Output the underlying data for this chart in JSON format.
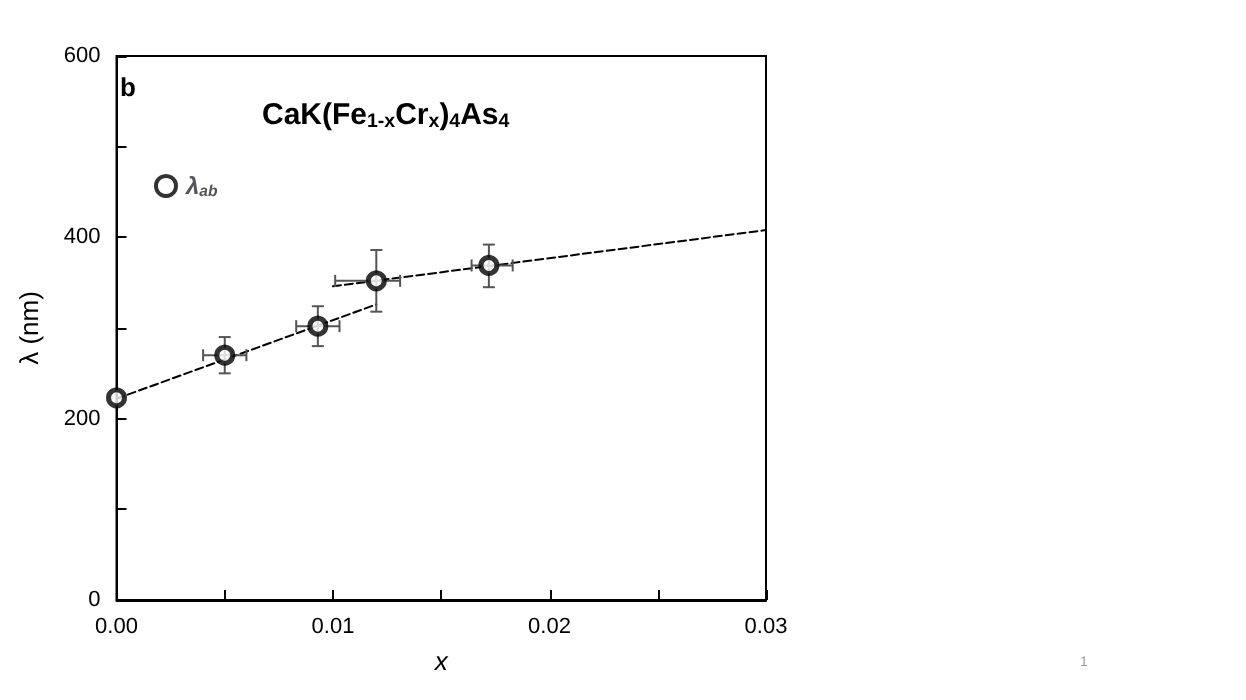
{
  "chart_data": {
    "type": "scatter",
    "title": "CaK(Fe$_{1-x}$Cr$_{x}$)$_{4}$As$_{4}$",
    "xlabel": "x",
    "ylabel": "λ (nm)",
    "annotations": [
      "b",
      "1"
    ],
    "x": [
      0,
      0.005,
      0.0093,
      0.012,
      0.0172
    ],
    "series": [
      {
        "name": "λ$_{ab}$",
        "color": "#000000",
        "values": [
          223,
          270,
          302,
          352,
          369
        ],
        "errors": [
          null,
          20,
          22,
          [
            318,
            386
          ],
          [
            345,
            392
          ]
        ],
        "xerrors": [
          null,
          0.001,
          0.001,
          [
            0.0101,
            0.0131
          ],
          [
            0.0164,
            0.0183
          ]
        ]
      },
      {
        "type": "line",
        "color": "#000000",
        "line_style": "dashed",
        "marker": "none",
        "x": [
          0,
          0.012
        ],
        "values": [
          222,
          326
        ]
      },
      {
        "type": "line",
        "color": "#000000",
        "line_style": "dashed",
        "marker": "none",
        "x": [
          0.01,
          0.03
        ],
        "values": [
          346,
          408
        ]
      }
    ],
    "xlim": [
      0,
      0.03
    ],
    "xticks": [
      {
        "value": 0,
        "label": "0.00"
      },
      {
        "value": 0.005,
        "label": null
      },
      0.01,
      {
        "value": 0.015,
        "label": null
      },
      0.02,
      {
        "value": 0.025,
        "label": null
      },
      0.03
    ],
    "ylim": [
      0,
      600
    ],
    "yticks": [
      0,
      {
        "value": 100,
        "label": null
      },
      200,
      {
        "value": 300,
        "label": null
      },
      400,
      {
        "value": 500,
        "label": null
      },
      600
    ],
    "marker": "circle",
    "grid": false,
    "legend": "top left"
  }
}
